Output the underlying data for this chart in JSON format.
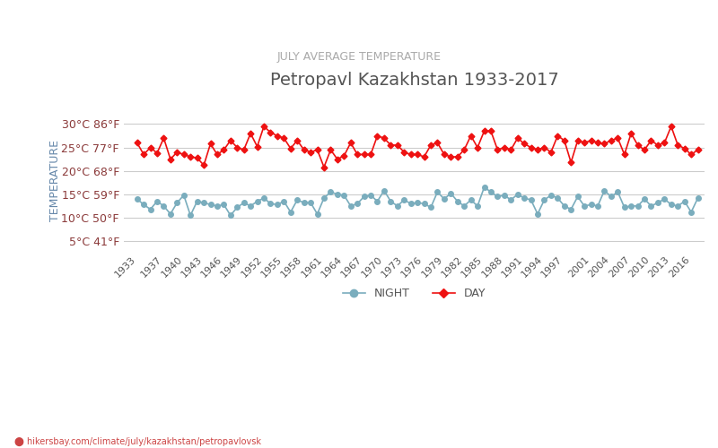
{
  "title": "Petropavl Kazakhstan 1933-2017",
  "subtitle": "JULY AVERAGE TEMPERATURE",
  "ylabel": "TEMPERATURE",
  "xlabel_url": "hikersbay.com/climate/july/kazakhstan/petropavlovsk",
  "title_color": "#555555",
  "subtitle_color": "#aaaaaa",
  "ylabel_color": "#6688aa",
  "background_color": "#ffffff",
  "grid_color": "#cccccc",
  "day_color": "#ee1111",
  "night_color": "#7aadbd",
  "years": [
    1933,
    1934,
    1935,
    1936,
    1937,
    1938,
    1939,
    1940,
    1941,
    1942,
    1943,
    1944,
    1945,
    1946,
    1947,
    1948,
    1949,
    1950,
    1951,
    1952,
    1953,
    1954,
    1955,
    1956,
    1957,
    1958,
    1959,
    1960,
    1961,
    1962,
    1963,
    1964,
    1965,
    1966,
    1967,
    1968,
    1969,
    1970,
    1971,
    1972,
    1973,
    1974,
    1975,
    1976,
    1977,
    1978,
    1979,
    1980,
    1981,
    1982,
    1983,
    1984,
    1985,
    1986,
    1987,
    1988,
    1989,
    1990,
    1991,
    1992,
    1993,
    1994,
    1995,
    1996,
    1997,
    1998,
    1999,
    2000,
    2001,
    2002,
    2003,
    2004,
    2005,
    2006,
    2007,
    2008,
    2009,
    2010,
    2011,
    2012,
    2013,
    2014,
    2015,
    2016,
    2017
  ],
  "day": [
    26.0,
    23.5,
    25.0,
    23.8,
    27.0,
    22.5,
    24.0,
    23.5,
    23.0,
    22.8,
    21.2,
    25.8,
    23.5,
    24.5,
    26.5,
    25.0,
    24.5,
    28.0,
    25.2,
    29.5,
    28.2,
    27.5,
    27.0,
    24.8,
    26.5,
    24.5,
    24.0,
    24.5,
    20.8,
    24.5,
    22.5,
    23.2,
    26.0,
    23.5,
    23.5,
    23.5,
    27.5,
    27.0,
    25.5,
    25.5,
    24.0,
    23.5,
    23.5,
    23.0,
    25.5,
    26.0,
    23.5,
    23.0,
    23.0,
    24.5,
    27.5,
    25.0,
    28.5,
    28.5,
    24.5,
    25.0,
    24.5,
    27.0,
    25.8,
    25.0,
    24.5,
    25.0,
    24.0,
    27.5,
    26.5,
    21.8,
    26.5,
    26.0,
    26.5,
    26.0,
    25.8,
    26.5,
    27.0,
    23.5,
    28.0,
    25.5,
    24.5,
    26.5,
    25.5,
    26.0,
    29.5,
    25.5,
    24.8,
    23.5,
    24.5
  ],
  "night": [
    14.0,
    12.8,
    11.8,
    13.5,
    12.5,
    10.8,
    13.2,
    14.8,
    10.5,
    13.5,
    13.2,
    12.8,
    12.5,
    12.8,
    10.5,
    12.2,
    13.2,
    12.5,
    13.5,
    14.2,
    13.0,
    12.8,
    13.5,
    11.2,
    13.8,
    13.2,
    13.2,
    10.8,
    14.2,
    15.5,
    15.0,
    14.8,
    12.5,
    13.0,
    14.5,
    14.8,
    13.5,
    15.8,
    13.5,
    12.5,
    13.8,
    13.0,
    13.2,
    13.0,
    12.2,
    15.5,
    14.0,
    15.2,
    13.5,
    12.5,
    13.8,
    12.5,
    16.5,
    15.5,
    14.5,
    14.8,
    13.8,
    15.0,
    14.2,
    13.8,
    10.8,
    13.8,
    14.8,
    14.2,
    12.5,
    11.8,
    14.5,
    12.5,
    12.8,
    12.5,
    15.8,
    14.5,
    15.5,
    12.2,
    12.5,
    12.5,
    14.0,
    12.5,
    13.2,
    14.0,
    12.8,
    12.5,
    13.5,
    11.2,
    14.2
  ],
  "yticks_c": [
    5,
    10,
    15,
    20,
    25,
    30
  ],
  "yticks_f": [
    41,
    50,
    59,
    68,
    77,
    86
  ],
  "xtick_years": [
    1933,
    1937,
    1940,
    1943,
    1946,
    1949,
    1952,
    1955,
    1958,
    1961,
    1964,
    1967,
    1970,
    1973,
    1976,
    1979,
    1982,
    1985,
    1988,
    1991,
    1994,
    1997,
    2001,
    2004,
    2007,
    2010,
    2013,
    2016
  ],
  "ylim": [
    3,
    33
  ]
}
